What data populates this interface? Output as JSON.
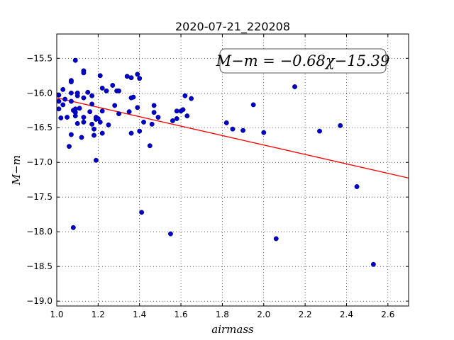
{
  "chart_data": {
    "type": "scatter",
    "title": "2020-07-21_220208",
    "xlabel": "airmass",
    "ylabel": "M−m",
    "xlim": [
      1.0,
      2.7
    ],
    "ylim": [
      -15.15,
      -19.07
    ],
    "y_inverted": true,
    "grid": true,
    "xticks": [
      1.0,
      1.2,
      1.4,
      1.6,
      1.8,
      2.0,
      2.2,
      2.4,
      2.6
    ],
    "xtick_labels": [
      "1.0",
      "1.2",
      "1.4",
      "1.6",
      "1.8",
      "2.0",
      "2.2",
      "2.4",
      "2.6"
    ],
    "yticks": [
      -15.5,
      -16.0,
      -16.5,
      -17.0,
      -17.5,
      -18.0,
      -18.5,
      -19.0
    ],
    "ytick_labels": [
      "−15.5",
      "−16.0",
      "−16.5",
      "−17.0",
      "−17.5",
      "−18.0",
      "−18.5",
      "−19.0"
    ],
    "annotation": "M−m = −0.68χ−15.39",
    "fit": {
      "slope": -0.68,
      "intercept": -15.39,
      "color": "#ff0000"
    },
    "marker_color": "#0000cc",
    "points": [
      {
        "x": 1.01,
        "y": -16.03
      },
      {
        "x": 1.01,
        "y": -16.12
      },
      {
        "x": 1.01,
        "y": -16.23
      },
      {
        "x": 1.02,
        "y": -16.36
      },
      {
        "x": 1.03,
        "y": -15.95
      },
      {
        "x": 1.03,
        "y": -16.17
      },
      {
        "x": 1.04,
        "y": -16.09
      },
      {
        "x": 1.05,
        "y": -16.35
      },
      {
        "x": 1.06,
        "y": -16.77
      },
      {
        "x": 1.07,
        "y": -15.82
      },
      {
        "x": 1.07,
        "y": -15.84
      },
      {
        "x": 1.07,
        "y": -16.0
      },
      {
        "x": 1.07,
        "y": -16.12
      },
      {
        "x": 1.07,
        "y": -16.6
      },
      {
        "x": 1.08,
        "y": -17.94
      },
      {
        "x": 1.08,
        "y": -16.25
      },
      {
        "x": 1.09,
        "y": -15.53
      },
      {
        "x": 1.09,
        "y": -16.23
      },
      {
        "x": 1.09,
        "y": -16.33
      },
      {
        "x": 1.09,
        "y": -16.28
      },
      {
        "x": 1.1,
        "y": -16.04
      },
      {
        "x": 1.1,
        "y": -16.0
      },
      {
        "x": 1.1,
        "y": -16.44
      },
      {
        "x": 1.11,
        "y": -16.22
      },
      {
        "x": 1.12,
        "y": -16.64
      },
      {
        "x": 1.13,
        "y": -15.68
      },
      {
        "x": 1.13,
        "y": -15.71
      },
      {
        "x": 1.13,
        "y": -16.07
      },
      {
        "x": 1.13,
        "y": -16.35
      },
      {
        "x": 1.13,
        "y": -16.42
      },
      {
        "x": 1.15,
        "y": -15.99
      },
      {
        "x": 1.16,
        "y": -16.27
      },
      {
        "x": 1.17,
        "y": -16.04
      },
      {
        "x": 1.17,
        "y": -16.16
      },
      {
        "x": 1.17,
        "y": -16.45
      },
      {
        "x": 1.18,
        "y": -16.61
      },
      {
        "x": 1.18,
        "y": -16.52
      },
      {
        "x": 1.19,
        "y": -16.97
      },
      {
        "x": 1.19,
        "y": -16.35
      },
      {
        "x": 1.19,
        "y": -16.38
      },
      {
        "x": 1.2,
        "y": -16.37
      },
      {
        "x": 1.21,
        "y": -15.75
      },
      {
        "x": 1.21,
        "y": -16.42
      },
      {
        "x": 1.22,
        "y": -15.93
      },
      {
        "x": 1.22,
        "y": -16.58
      },
      {
        "x": 1.22,
        "y": -16.26
      },
      {
        "x": 1.24,
        "y": -15.97
      },
      {
        "x": 1.25,
        "y": -16.46
      },
      {
        "x": 1.27,
        "y": -15.89
      },
      {
        "x": 1.28,
        "y": -16.18
      },
      {
        "x": 1.29,
        "y": -15.97
      },
      {
        "x": 1.3,
        "y": -15.97
      },
      {
        "x": 1.3,
        "y": -16.3
      },
      {
        "x": 1.34,
        "y": -15.76
      },
      {
        "x": 1.35,
        "y": -16.27
      },
      {
        "x": 1.36,
        "y": -16.07
      },
      {
        "x": 1.36,
        "y": -15.78
      },
      {
        "x": 1.36,
        "y": -16.58
      },
      {
        "x": 1.37,
        "y": -16.06
      },
      {
        "x": 1.39,
        "y": -15.73
      },
      {
        "x": 1.39,
        "y": -16.21
      },
      {
        "x": 1.4,
        "y": -15.79
      },
      {
        "x": 1.4,
        "y": -16.55
      },
      {
        "x": 1.41,
        "y": -17.72
      },
      {
        "x": 1.42,
        "y": -16.42
      },
      {
        "x": 1.45,
        "y": -16.76
      },
      {
        "x": 1.46,
        "y": -16.45
      },
      {
        "x": 1.47,
        "y": -16.18
      },
      {
        "x": 1.47,
        "y": -16.28
      },
      {
        "x": 1.49,
        "y": -16.35
      },
      {
        "x": 1.55,
        "y": -18.03
      },
      {
        "x": 1.56,
        "y": -16.4
      },
      {
        "x": 1.58,
        "y": -16.37
      },
      {
        "x": 1.58,
        "y": -16.26
      },
      {
        "x": 1.6,
        "y": -16.26
      },
      {
        "x": 1.61,
        "y": -16.24
      },
      {
        "x": 1.62,
        "y": -16.04
      },
      {
        "x": 1.63,
        "y": -16.33
      },
      {
        "x": 1.65,
        "y": -16.08
      },
      {
        "x": 1.82,
        "y": -16.43
      },
      {
        "x": 1.85,
        "y": -16.52
      },
      {
        "x": 1.9,
        "y": -16.54
      },
      {
        "x": 1.95,
        "y": -16.17
      },
      {
        "x": 2.0,
        "y": -16.57
      },
      {
        "x": 2.06,
        "y": -18.1
      },
      {
        "x": 2.15,
        "y": -15.91
      },
      {
        "x": 2.27,
        "y": -16.55
      },
      {
        "x": 2.37,
        "y": -16.47
      },
      {
        "x": 2.45,
        "y": -17.35
      },
      {
        "x": 2.53,
        "y": -18.47
      }
    ]
  }
}
